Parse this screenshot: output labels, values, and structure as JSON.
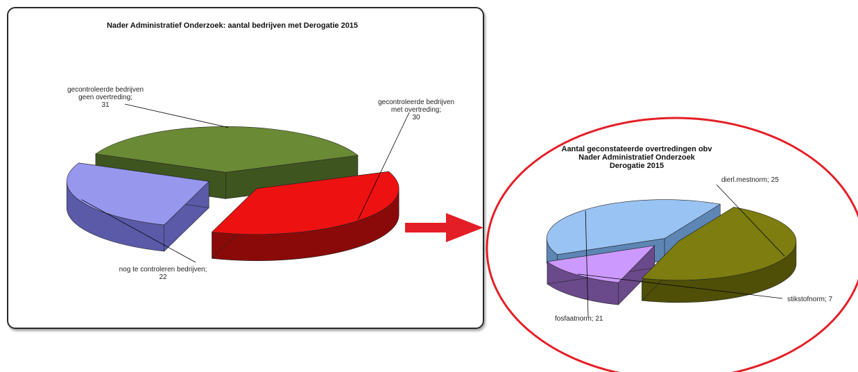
{
  "chart_data": [
    {
      "type": "pie",
      "title": "Nader Administratief Onderzoek: aantal bedrijven met Derogatie 2015",
      "slices": [
        {
          "label": "gecontroleerde bedrijven met overtreding; 30",
          "value": 30,
          "color": "#ee1111",
          "sideColor": "#8a0a0a"
        },
        {
          "label": "nog te controleren bedrijven; 22",
          "value": 22,
          "color": "#9797ee",
          "sideColor": "#5a5aa8"
        },
        {
          "label": "gecontroleerde bedrijven geen overtreding; 31",
          "value": 31,
          "color": "#6b8a35",
          "sideColor": "#3f5520"
        }
      ]
    },
    {
      "type": "pie",
      "title": "Aantal geconstateerde overtredingen obv Nader Administratief Onderzoek Derogatie 2015",
      "slices": [
        {
          "label": "dierl.mestnorm; 25",
          "value": 25,
          "color": "#7d7d10",
          "sideColor": "#4f4f08"
        },
        {
          "label": "stikstofnorm; 7",
          "value": 7,
          "color": "#cc99ff",
          "sideColor": "#6a4a8a"
        },
        {
          "label": "fosfaatnorm; 21",
          "value": 21,
          "color": "#99c3f2",
          "sideColor": "#5d86b5"
        }
      ]
    }
  ]
}
